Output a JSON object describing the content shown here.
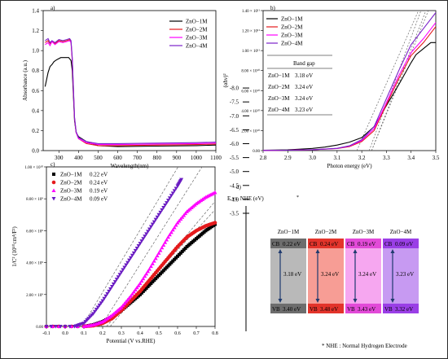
{
  "chart_data": [
    {
      "panel": "a)",
      "type": "line",
      "xlabel": "Wavelength(nm)",
      "ylabel": "Absorbance (a.u.)",
      "xlim": [
        220,
        1100
      ],
      "ylim": [
        0,
        1.4
      ],
      "xticks": [
        300,
        400,
        500,
        600,
        700,
        800,
        900,
        1000,
        1100
      ],
      "yticks": [
        "0.0",
        "0.2",
        "0.4",
        "0.6",
        "0.8",
        "1.0",
        "1.2",
        "1.4"
      ],
      "legend_position": "top-right",
      "series": [
        {
          "name": "ZnO−1M",
          "color": "#000000",
          "points": [
            [
              230,
              0.64
            ],
            [
              245,
              0.78
            ],
            [
              255,
              0.84
            ],
            [
              265,
              0.86
            ],
            [
              275,
              0.89
            ],
            [
              290,
              0.91
            ],
            [
              310,
              0.93
            ],
            [
              330,
              0.93
            ],
            [
              350,
              0.93
            ],
            [
              362,
              0.9
            ],
            [
              368,
              0.8
            ],
            [
              374,
              0.55
            ],
            [
              380,
              0.3
            ],
            [
              388,
              0.18
            ],
            [
              400,
              0.14
            ],
            [
              440,
              0.09
            ],
            [
              500,
              0.05
            ],
            [
              600,
              0.04
            ],
            [
              800,
              0.045
            ],
            [
              1000,
              0.05
            ],
            [
              1100,
              0.055
            ]
          ]
        },
        {
          "name": "ZnO−2M",
          "color": "#e41a1c",
          "points": [
            [
              230,
              1.08
            ],
            [
              245,
              1.1
            ],
            [
              255,
              1.07
            ],
            [
              265,
              1.09
            ],
            [
              280,
              1.07
            ],
            [
              300,
              1.1
            ],
            [
              320,
              1.09
            ],
            [
              340,
              1.1
            ],
            [
              355,
              1.11
            ],
            [
              362,
              1.08
            ],
            [
              368,
              0.9
            ],
            [
              374,
              0.6
            ],
            [
              380,
              0.32
            ],
            [
              388,
              0.18
            ],
            [
              400,
              0.12
            ],
            [
              440,
              0.07
            ],
            [
              500,
              0.05
            ],
            [
              600,
              0.05
            ],
            [
              800,
              0.055
            ],
            [
              1000,
              0.06
            ],
            [
              1100,
              0.065
            ]
          ]
        },
        {
          "name": "ZnO−3M",
          "color": "#ff00ff",
          "points": [
            [
              230,
              1.06
            ],
            [
              245,
              1.08
            ],
            [
              255,
              1.05
            ],
            [
              265,
              1.09
            ],
            [
              280,
              1.06
            ],
            [
              300,
              1.09
            ],
            [
              320,
              1.08
            ],
            [
              340,
              1.09
            ],
            [
              355,
              1.1
            ],
            [
              362,
              1.08
            ],
            [
              368,
              0.92
            ],
            [
              374,
              0.62
            ],
            [
              380,
              0.33
            ],
            [
              388,
              0.18
            ],
            [
              400,
              0.12
            ],
            [
              440,
              0.08
            ],
            [
              500,
              0.06
            ],
            [
              600,
              0.06
            ],
            [
              800,
              0.065
            ],
            [
              1000,
              0.07
            ],
            [
              1100,
              0.075
            ]
          ]
        },
        {
          "name": "ZnO−4M",
          "color": "#7b22c9",
          "points": [
            [
              230,
              1.1
            ],
            [
              245,
              1.12
            ],
            [
              255,
              1.08
            ],
            [
              265,
              1.1
            ],
            [
              280,
              1.08
            ],
            [
              300,
              1.11
            ],
            [
              320,
              1.1
            ],
            [
              340,
              1.11
            ],
            [
              355,
              1.12
            ],
            [
              362,
              1.1
            ],
            [
              368,
              0.93
            ],
            [
              374,
              0.63
            ],
            [
              380,
              0.33
            ],
            [
              388,
              0.19
            ],
            [
              400,
              0.13
            ],
            [
              440,
              0.09
            ],
            [
              500,
              0.07
            ],
            [
              600,
              0.07
            ],
            [
              800,
              0.075
            ],
            [
              1000,
              0.08
            ],
            [
              1100,
              0.085
            ]
          ]
        }
      ]
    },
    {
      "panel": "b)",
      "type": "line",
      "xlabel": "Photon energy (eV)",
      "ylabel": "(αhν)²",
      "xlim": [
        2.8,
        3.5
      ],
      "ylim": [
        0,
        140000000000.0
      ],
      "xticks": [
        "2.8",
        "2.9",
        "3.0",
        "3.1",
        "3.2",
        "3.3",
        "3.4",
        "3.5"
      ],
      "yticks": [
        "0.00",
        "2.00 × 10¹⁰",
        "4.00 × 10¹⁰",
        "6.00 × 10¹⁰",
        "8.00 × 10¹⁰",
        "1.00 × 10¹¹",
        "1.20 × 10¹¹",
        "1.40 × 10¹¹"
      ],
      "legend_position": "top-left",
      "table": {
        "header": [
          "",
          "Band gap"
        ],
        "rows": [
          [
            "ZnO−1M",
            "3.18 eV"
          ],
          [
            "ZnO−2M",
            "3.24 eV"
          ],
          [
            "ZnO−3M",
            "3.24 eV"
          ],
          [
            "ZnO−4M",
            "3.23 eV"
          ]
        ]
      },
      "series": [
        {
          "name": "ZnO−1M",
          "color": "#000000",
          "points": [
            [
              2.8,
              0.3
            ],
            [
              2.9,
              0.8
            ],
            [
              3.0,
              2.2
            ],
            [
              3.05,
              3.5
            ],
            [
              3.1,
              5.5
            ],
            [
              3.15,
              8.5
            ],
            [
              3.2,
              13
            ],
            [
              3.25,
              24
            ],
            [
              3.3,
              45
            ],
            [
              3.35,
              66
            ],
            [
              3.4,
              88
            ],
            [
              3.42,
              96
            ],
            [
              3.45,
              102
            ],
            [
              3.48,
              108
            ],
            [
              3.5,
              108
            ]
          ]
        },
        {
          "name": "ZnO−2M",
          "color": "#e41a1c",
          "points": [
            [
              2.8,
              0.2
            ],
            [
              2.9,
              0.4
            ],
            [
              3.0,
              0.8
            ],
            [
              3.1,
              2
            ],
            [
              3.15,
              4
            ],
            [
              3.2,
              9
            ],
            [
              3.25,
              20
            ],
            [
              3.3,
              46
            ],
            [
              3.35,
              72
            ],
            [
              3.4,
              95
            ],
            [
              3.45,
              108
            ],
            [
              3.5,
              124
            ]
          ]
        },
        {
          "name": "ZnO−3M",
          "color": "#ff00ff",
          "points": [
            [
              2.8,
              0.2
            ],
            [
              2.9,
              0.4
            ],
            [
              3.0,
              0.9
            ],
            [
              3.1,
              2.2
            ],
            [
              3.15,
              4.5
            ],
            [
              3.2,
              10
            ],
            [
              3.25,
              22
            ],
            [
              3.3,
              48
            ],
            [
              3.35,
              75
            ],
            [
              3.4,
              98
            ],
            [
              3.45,
              112
            ],
            [
              3.5,
              128
            ]
          ]
        },
        {
          "name": "ZnO−4M",
          "color": "#7b22c9",
          "points": [
            [
              2.8,
              0.2
            ],
            [
              2.9,
              0.4
            ],
            [
              3.0,
              0.9
            ],
            [
              3.1,
              2.3
            ],
            [
              3.15,
              4.8
            ],
            [
              3.2,
              11
            ],
            [
              3.25,
              24
            ],
            [
              3.3,
              52
            ],
            [
              3.35,
              80
            ],
            [
              3.4,
              106
            ],
            [
              3.45,
              122
            ],
            [
              3.5,
              138
            ]
          ]
        }
      ]
    },
    {
      "panel": "c)",
      "type": "scatter",
      "xlabel": "Potential (V vs.RHE)",
      "ylabel": "1/C² (10¹⁰cm⁴/F²)",
      "xlim": [
        -0.1,
        0.8
      ],
      "ylim": [
        0,
        1.0
      ],
      "xticks": [
        "-0.1",
        "0.0",
        "0.1",
        "0.2",
        "0.3",
        "0.4",
        "0.5",
        "0.6",
        "0.7",
        "0.8"
      ],
      "yticks": [
        "0.00",
        "2.00 × 10⁹",
        "4.00 × 10⁹",
        "6.00 × 10⁹",
        "8.00 × 10⁹",
        "1.00 × 10¹⁰"
      ],
      "legend_position": "top-left",
      "series": [
        {
          "name": "ZnO−1M",
          "value_label": "0.22 eV",
          "color": "#000000",
          "marker": "square",
          "points": [
            [
              -0.1,
              0
            ],
            [
              0.1,
              0.0
            ],
            [
              0.15,
              0.01
            ],
            [
              0.2,
              0.03
            ],
            [
              0.25,
              0.06
            ],
            [
              0.3,
              0.1
            ],
            [
              0.35,
              0.15
            ],
            [
              0.4,
              0.2
            ],
            [
              0.45,
              0.26
            ],
            [
              0.5,
              0.32
            ],
            [
              0.55,
              0.38
            ],
            [
              0.6,
              0.44
            ],
            [
              0.65,
              0.5
            ],
            [
              0.7,
              0.55
            ],
            [
              0.75,
              0.6
            ],
            [
              0.8,
              0.64
            ]
          ]
        },
        {
          "name": "ZnO−2M",
          "value_label": "0.24 eV",
          "color": "#e41a1c",
          "marker": "circle",
          "points": [
            [
              -0.1,
              0
            ],
            [
              0.1,
              0.0
            ],
            [
              0.15,
              0.005
            ],
            [
              0.2,
              0.02
            ],
            [
              0.25,
              0.05
            ],
            [
              0.3,
              0.1
            ],
            [
              0.35,
              0.16
            ],
            [
              0.4,
              0.22
            ],
            [
              0.45,
              0.29
            ],
            [
              0.5,
              0.36
            ],
            [
              0.55,
              0.43
            ],
            [
              0.6,
              0.5
            ],
            [
              0.65,
              0.56
            ],
            [
              0.7,
              0.6
            ],
            [
              0.75,
              0.63
            ],
            [
              0.8,
              0.65
            ]
          ]
        },
        {
          "name": "ZnO−3M",
          "value_label": "0.19 eV",
          "color": "#ff00ff",
          "marker": "triangle-up",
          "points": [
            [
              -0.1,
              0
            ],
            [
              0.1,
              0.0
            ],
            [
              0.15,
              0.01
            ],
            [
              0.2,
              0.03
            ],
            [
              0.25,
              0.07
            ],
            [
              0.3,
              0.12
            ],
            [
              0.35,
              0.19
            ],
            [
              0.4,
              0.27
            ],
            [
              0.45,
              0.36
            ],
            [
              0.5,
              0.46
            ],
            [
              0.55,
              0.56
            ],
            [
              0.6,
              0.65
            ],
            [
              0.65,
              0.72
            ],
            [
              0.7,
              0.77
            ],
            [
              0.75,
              0.81
            ],
            [
              0.8,
              0.84
            ]
          ]
        },
        {
          "name": "ZnO−4M",
          "value_label": "0.09 eV",
          "color": "#6a1cc2",
          "marker": "triangle-down",
          "points": [
            [
              -0.1,
              0
            ],
            [
              0.05,
              0.0
            ],
            [
              0.1,
              0.02
            ],
            [
              0.15,
              0.08
            ],
            [
              0.2,
              0.16
            ],
            [
              0.25,
              0.25
            ],
            [
              0.3,
              0.34
            ],
            [
              0.35,
              0.43
            ],
            [
              0.4,
              0.52
            ],
            [
              0.45,
              0.61
            ],
            [
              0.5,
              0.7
            ],
            [
              0.55,
              0.79
            ],
            [
              0.6,
              0.88
            ],
            [
              0.62,
              0.92
            ]
          ]
        }
      ]
    },
    {
      "panel": "d)",
      "type": "diagram",
      "axis_label": "E vs. NHE (eV)",
      "axis_ticks": [
        "-3.5",
        "-4.0",
        "-4.5",
        "-5.0",
        "-5.5",
        "-6.0",
        "-6.5",
        "-7.0",
        "-7.5",
        "-8.0"
      ],
      "footnote": "* NHE : Normal Hydrogen Electrode",
      "samples": [
        {
          "name": "ZnO−1M",
          "cb": "0.22 eV",
          "vb": "3.40 eV",
          "gap": "3.18 eV",
          "color": "#b9b9b9",
          "edge_color": "#6d6d6d"
        },
        {
          "name": "ZnO−2M",
          "cb": "0.24 eV",
          "vb": "3.48 eV",
          "gap": "3.24 eV",
          "color": "#f79d95",
          "edge_color": "#e3342b"
        },
        {
          "name": "ZnO−3M",
          "cb": "0.19 eV",
          "vb": "3.43 eV",
          "gap": "3.24 eV",
          "color": "#f6a7f0",
          "edge_color": "#e24ad8"
        },
        {
          "name": "ZnO−4M",
          "cb": "0.09 eV",
          "vb": "3.32 eV",
          "gap": "3.23 eV",
          "color": "#c79af2",
          "edge_color": "#9a3fe6"
        }
      ]
    }
  ]
}
